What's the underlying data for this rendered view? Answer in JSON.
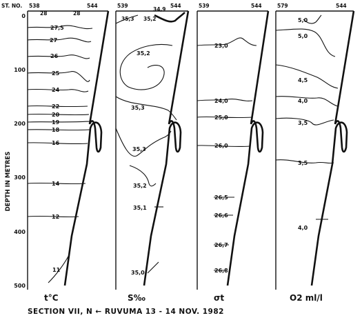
{
  "station_label": "ST. NO.",
  "y_axis": {
    "label": "DEPTH IN METRES",
    "ticks": [
      "0",
      "100",
      "200",
      "300",
      "400",
      "500"
    ]
  },
  "caption": "SECTION VII,  N ← RUVUMA  13 - 14 NOV. 1982",
  "panels": [
    {
      "param": "t°C",
      "stations": [
        "538",
        "544"
      ],
      "top_labels": [
        "28",
        "28"
      ],
      "labels": [
        "27,5",
        "27",
        "26",
        "25",
        "24",
        "22",
        "20",
        "19",
        "18",
        "16",
        "14",
        "12",
        "11"
      ]
    },
    {
      "param": "S‰",
      "stations": [
        "539",
        "544"
      ],
      "top_labels": [
        "35,3",
        "34,9",
        "35,2"
      ],
      "labels": [
        "35,2",
        "35,3",
        "35,3",
        "35,2",
        "35,1",
        "35,0"
      ]
    },
    {
      "param": "σt",
      "stations": [
        "539",
        "544"
      ],
      "top_labels": [],
      "labels": [
        "23,0",
        "24,0",
        "25,0",
        "26,0",
        "26,5",
        "26,6",
        "26,7",
        "26,8"
      ]
    },
    {
      "param": "O2 ml/l",
      "stations": [
        "579",
        "544"
      ],
      "top_labels": [],
      "labels": [
        "5,0",
        "5,0",
        "4,5",
        "4,0",
        "3,5",
        "3,5",
        "4,0"
      ]
    }
  ]
}
